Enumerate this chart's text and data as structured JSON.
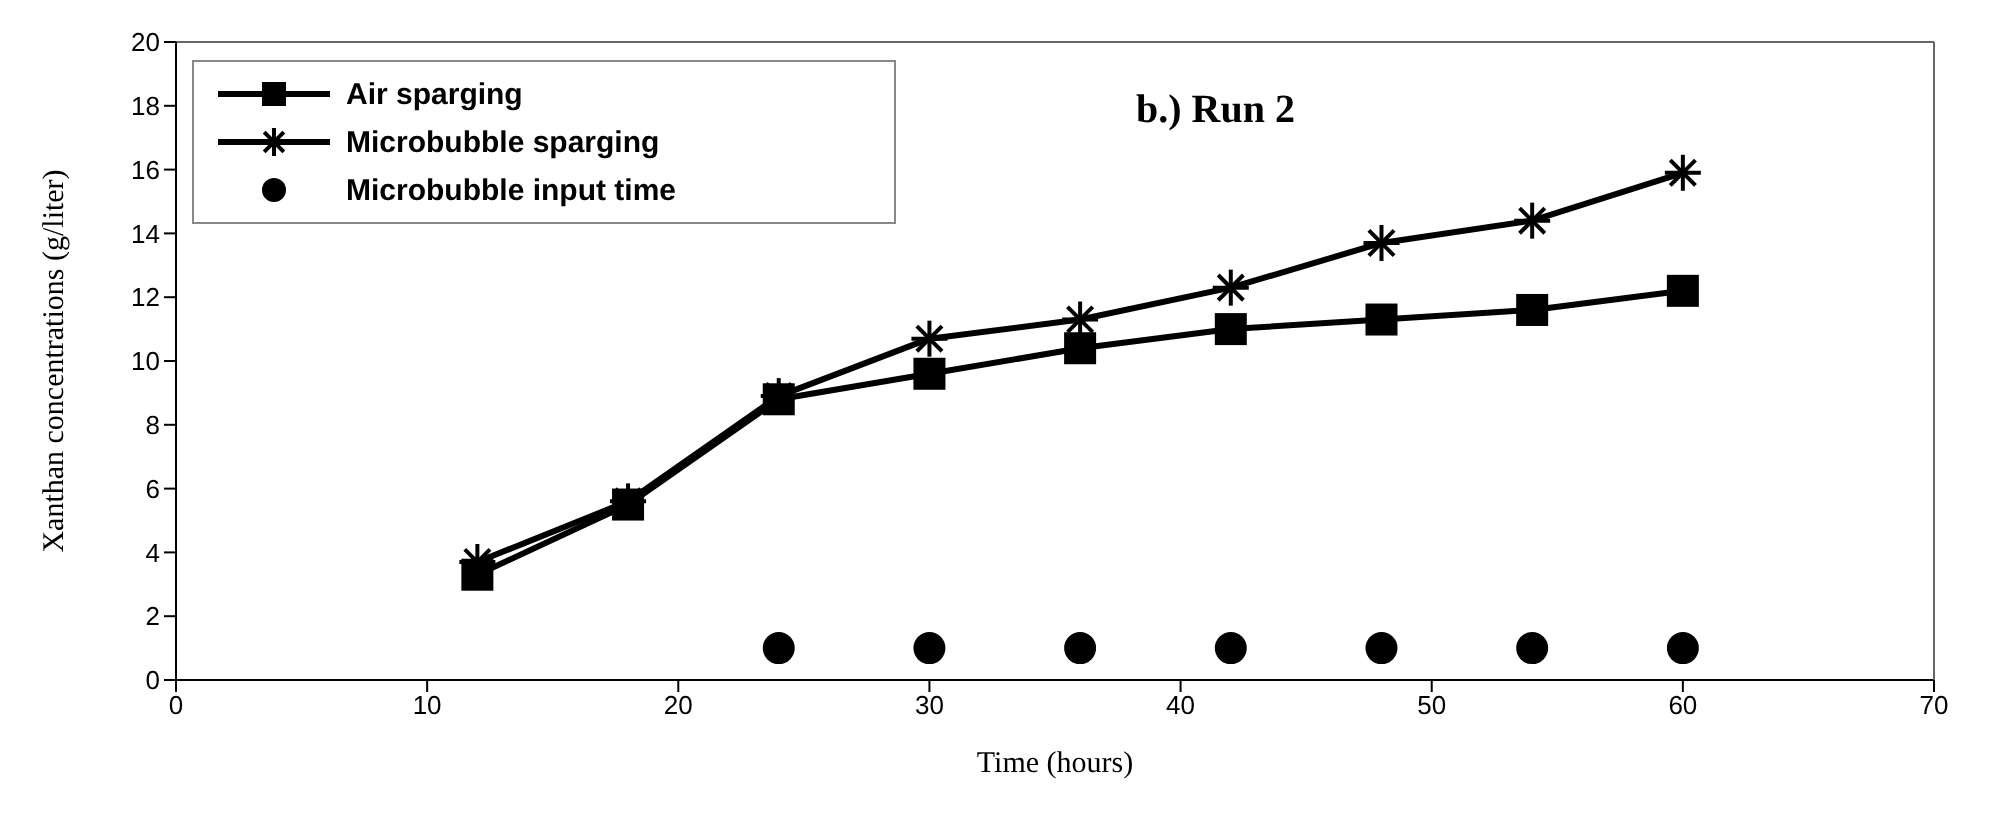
{
  "chart_data": {
    "type": "line",
    "title": "b.) Run 2",
    "xlabel": "Time (hours)",
    "ylabel": "Xanthan concentrations (g/liter)",
    "x": [
      12,
      18,
      24,
      30,
      36,
      42,
      48,
      54,
      60
    ],
    "series": [
      {
        "name": "Air sparging",
        "color": "#000000",
        "marker": "square",
        "values": [
          3.3,
          5.5,
          8.8,
          9.6,
          10.4,
          11.0,
          11.3,
          11.6,
          12.2
        ]
      },
      {
        "name": "Microbubble sparging",
        "color": "#000000",
        "marker": "cross",
        "values": [
          3.7,
          5.6,
          8.9,
          10.7,
          11.3,
          12.3,
          13.7,
          14.4,
          15.9
        ]
      },
      {
        "name": "Microbubble input time",
        "type": "scatter",
        "color": "#000000",
        "marker": "circle",
        "x": [
          24,
          30,
          36,
          42,
          48,
          54,
          60
        ],
        "values": [
          1,
          1,
          1,
          1,
          1,
          1,
          1
        ]
      }
    ],
    "xlim": [
      0,
      70
    ],
    "xticks": [
      0,
      10,
      20,
      30,
      40,
      50,
      60,
      70
    ],
    "ylim": [
      0,
      20
    ],
    "yticks": [
      0,
      2,
      4,
      6,
      8,
      10,
      12,
      14,
      16,
      18,
      20
    ],
    "legend": "top left",
    "line_style": "solid"
  }
}
